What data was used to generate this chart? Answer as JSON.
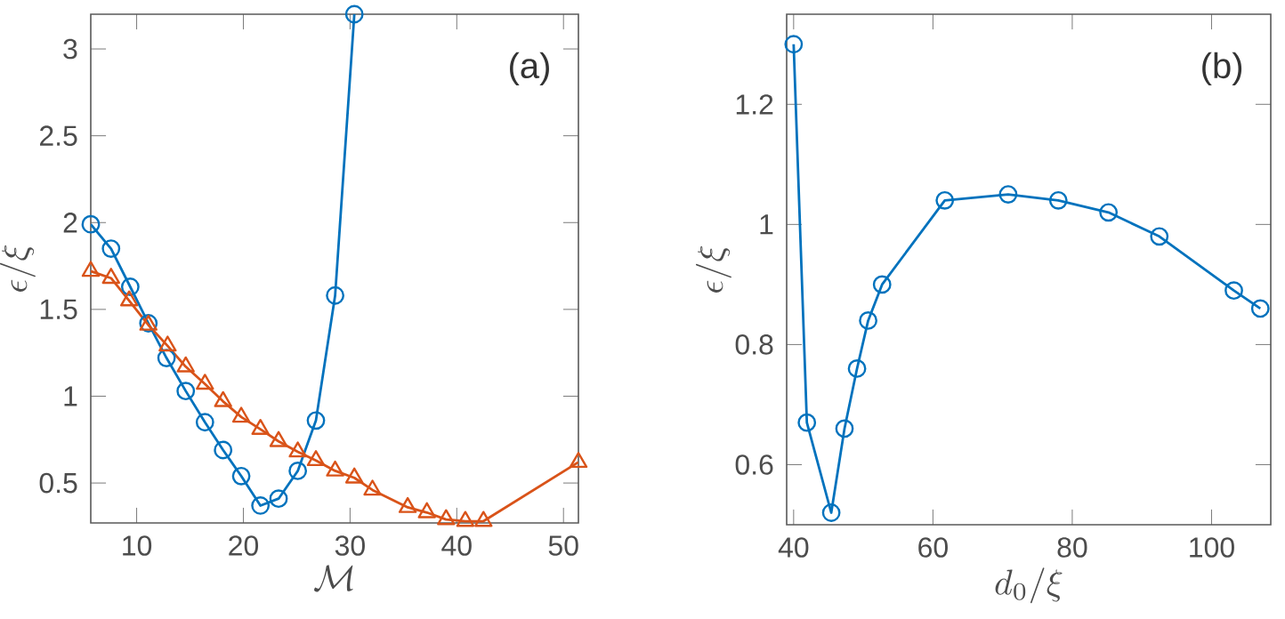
{
  "chart_data": [
    {
      "type": "line",
      "xlabel": "\\mathcal{M}",
      "ylabel": "\\epsilon/\\xi",
      "annotations": [
        "(a)"
      ],
      "xlim": [
        5.7,
        51.4
      ],
      "ylim": [
        0.27,
        3.2
      ],
      "xticks": [
        10,
        20,
        30,
        40,
        50
      ],
      "yticks": [
        0.5,
        1,
        1.5,
        2,
        2.5,
        3
      ],
      "line_style": "solid",
      "series": [
        {
          "color": "#0072bd",
          "marker": "circle",
          "x": [
            5.7,
            7.6,
            9.4,
            11.1,
            12.8,
            14.6,
            16.4,
            18.1,
            19.8,
            21.6,
            23.3,
            25.1,
            26.8,
            28.6,
            30.4
          ],
          "values": [
            1.99,
            1.85,
            1.63,
            1.42,
            1.22,
            1.03,
            0.85,
            0.69,
            0.54,
            0.37,
            0.41,
            0.57,
            0.86,
            1.58,
            3.2
          ]
        },
        {
          "color": "#d95319",
          "marker": "triangle",
          "x": [
            5.7,
            7.6,
            9.3,
            11.1,
            12.9,
            14.6,
            16.4,
            18.1,
            19.8,
            21.6,
            23.3,
            25.1,
            26.8,
            28.6,
            30.4,
            32.1,
            35.4,
            37.2,
            39.0,
            40.8,
            42.5,
            51.4
          ],
          "values": [
            1.72,
            1.68,
            1.55,
            1.41,
            1.29,
            1.17,
            1.07,
            0.97,
            0.88,
            0.81,
            0.74,
            0.68,
            0.63,
            0.57,
            0.53,
            0.46,
            0.36,
            0.33,
            0.29,
            0.28,
            0.28,
            0.62
          ]
        }
      ]
    },
    {
      "type": "line",
      "xlabel": "d_0/\\xi",
      "ylabel": "\\epsilon/\\xi",
      "annotations": [
        "(b)"
      ],
      "xlim": [
        39,
        108.5
      ],
      "ylim": [
        0.5,
        1.35
      ],
      "xticks": [
        40,
        60,
        80,
        100
      ],
      "yticks": [
        0.6,
        0.8,
        1,
        1.2
      ],
      "line_style": "solid",
      "series": [
        {
          "color": "#0072bd",
          "marker": "circle",
          "x": [
            40,
            41.9,
            45.4,
            47.3,
            49.1,
            50.7,
            52.7,
            61.7,
            70.8,
            78.0,
            85.2,
            92.5,
            103.2,
            107.0
          ],
          "values": [
            1.3,
            0.67,
            0.52,
            0.66,
            0.76,
            0.84,
            0.9,
            1.04,
            1.05,
            1.04,
            1.02,
            0.98,
            0.89,
            0.86
          ]
        }
      ]
    }
  ]
}
